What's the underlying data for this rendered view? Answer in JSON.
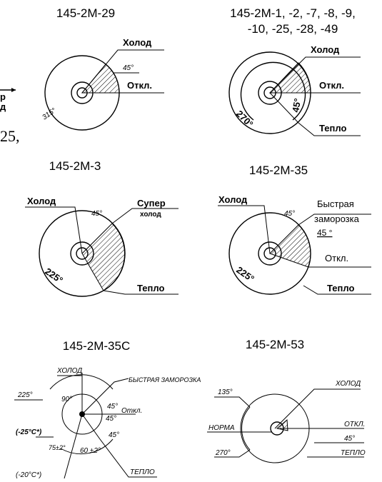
{
  "fragments": [
    "р",
    "д",
    "25,"
  ],
  "diagrams": [
    {
      "title": [
        "145-2М-29"
      ],
      "labels": [
        "Холод",
        "45°",
        "Откл.",
        "315°"
      ]
    },
    {
      "title": [
        "145-2М-1, -2, -7, -8, -9,",
        "-10,  -25,  -28,  -49"
      ],
      "labels": [
        "Холод",
        "Откл.",
        "45°",
        "270°",
        "Тепло"
      ]
    },
    {
      "title": [
        "145-2М-3"
      ],
      "labels": [
        "Холод",
        "45°",
        "Супер",
        "холод",
        "225°",
        "Тепло"
      ]
    },
    {
      "title": [
        "145-2М-35"
      ],
      "labels": [
        "Холод",
        "45°",
        "Быстрая",
        "заморозка",
        "45 °",
        "Откл.",
        "225°",
        "Тепло"
      ]
    },
    {
      "title": [
        "145-2М-35С"
      ],
      "labels": [
        "ХОЛОД",
        "БЫСТРАЯ  ЗАМОРОЗКА",
        "225°",
        "90°",
        "45°",
        "45°",
        "Откл.",
        "(-25°C*)",
        "75±2°",
        "60 ±2°",
        "45°",
        "(-20°C*)",
        "ТЕПЛО"
      ]
    },
    {
      "title": [
        "145-2М-53"
      ],
      "labels": [
        "135°",
        "ХОЛОД",
        "НОРМА",
        "ОТКЛ.",
        "45°",
        "ТЕПЛО",
        "270°"
      ]
    }
  ]
}
